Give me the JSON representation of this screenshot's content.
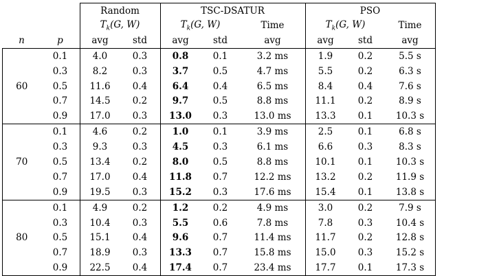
{
  "header": {
    "random": "Random",
    "tsc": "TSC-DSATUR",
    "pso": "PSO",
    "metric": "T_k(G,W)",
    "metric_sub": "k",
    "metric_args": "(G, W)",
    "metric_T": "T",
    "time": "Time",
    "avg": "avg",
    "std": "std",
    "n": "n",
    "p": "p"
  },
  "groups": [
    {
      "n": "60",
      "rows": [
        {
          "p": "0.1",
          "r_avg": "4.0",
          "r_std": "0.3",
          "t_avg": "0.8",
          "t_std": "0.1",
          "t_time": "3.2 ms",
          "p_avg": "1.9",
          "p_std": "0.2",
          "p_time": "5.5 s"
        },
        {
          "p": "0.3",
          "r_avg": "8.2",
          "r_std": "0.3",
          "t_avg": "3.7",
          "t_std": "0.5",
          "t_time": "4.7 ms",
          "p_avg": "5.5",
          "p_std": "0.2",
          "p_time": "6.3 s"
        },
        {
          "p": "0.5",
          "r_avg": "11.6",
          "r_std": "0.4",
          "t_avg": "6.4",
          "t_std": "0.4",
          "t_time": "6.5 ms",
          "p_avg": "8.4",
          "p_std": "0.4",
          "p_time": "7.6 s"
        },
        {
          "p": "0.7",
          "r_avg": "14.5",
          "r_std": "0.2",
          "t_avg": "9.7",
          "t_std": "0.5",
          "t_time": "8.8 ms",
          "p_avg": "11.1",
          "p_std": "0.2",
          "p_time": "8.9 s"
        },
        {
          "p": "0.9",
          "r_avg": "17.0",
          "r_std": "0.3",
          "t_avg": "13.0",
          "t_std": "0.3",
          "t_time": "13.0 ms",
          "p_avg": "13.3",
          "p_std": "0.1",
          "p_time": "10.3 s"
        }
      ]
    },
    {
      "n": "70",
      "rows": [
        {
          "p": "0.1",
          "r_avg": "4.6",
          "r_std": "0.2",
          "t_avg": "1.0",
          "t_std": "0.1",
          "t_time": "3.9 ms",
          "p_avg": "2.5",
          "p_std": "0.1",
          "p_time": "6.8 s"
        },
        {
          "p": "0.3",
          "r_avg": "9.3",
          "r_std": "0.3",
          "t_avg": "4.5",
          "t_std": "0.3",
          "t_time": "6.1 ms",
          "p_avg": "6.6",
          "p_std": "0.3",
          "p_time": "8.3 s"
        },
        {
          "p": "0.5",
          "r_avg": "13.4",
          "r_std": "0.2",
          "t_avg": "8.0",
          "t_std": "0.5",
          "t_time": "8.8 ms",
          "p_avg": "10.1",
          "p_std": "0.1",
          "p_time": "10.3 s"
        },
        {
          "p": "0.7",
          "r_avg": "17.0",
          "r_std": "0.4",
          "t_avg": "11.8",
          "t_std": "0.7",
          "t_time": "12.2 ms",
          "p_avg": "13.2",
          "p_std": "0.2",
          "p_time": "11.9 s"
        },
        {
          "p": "0.9",
          "r_avg": "19.5",
          "r_std": "0.3",
          "t_avg": "15.2",
          "t_std": "0.3",
          "t_time": "17.6 ms",
          "p_avg": "15.4",
          "p_std": "0.1",
          "p_time": "13.8 s"
        }
      ]
    },
    {
      "n": "80",
      "rows": [
        {
          "p": "0.1",
          "r_avg": "4.9",
          "r_std": "0.2",
          "t_avg": "1.2",
          "t_std": "0.2",
          "t_time": "4.9 ms",
          "p_avg": "3.0",
          "p_std": "0.2",
          "p_time": "7.9 s"
        },
        {
          "p": "0.3",
          "r_avg": "10.4",
          "r_std": "0.3",
          "t_avg": "5.5",
          "t_std": "0.6",
          "t_time": "7.8 ms",
          "p_avg": "7.8",
          "p_std": "0.3",
          "p_time": "10.4 s"
        },
        {
          "p": "0.5",
          "r_avg": "15.1",
          "r_std": "0.4",
          "t_avg": "9.6",
          "t_std": "0.7",
          "t_time": "11.4 ms",
          "p_avg": "11.7",
          "p_std": "0.2",
          "p_time": "12.8 s"
        },
        {
          "p": "0.7",
          "r_avg": "18.9",
          "r_std": "0.3",
          "t_avg": "13.3",
          "t_std": "0.7",
          "t_time": "15.8 ms",
          "p_avg": "15.0",
          "p_std": "0.3",
          "p_time": "15.2 s"
        },
        {
          "p": "0.9",
          "r_avg": "22.5",
          "r_std": "0.4",
          "t_avg": "17.4",
          "t_std": "0.7",
          "t_time": "23.4 ms",
          "p_avg": "17.7",
          "p_std": "0.1",
          "p_time": "17.3 s"
        }
      ]
    }
  ]
}
